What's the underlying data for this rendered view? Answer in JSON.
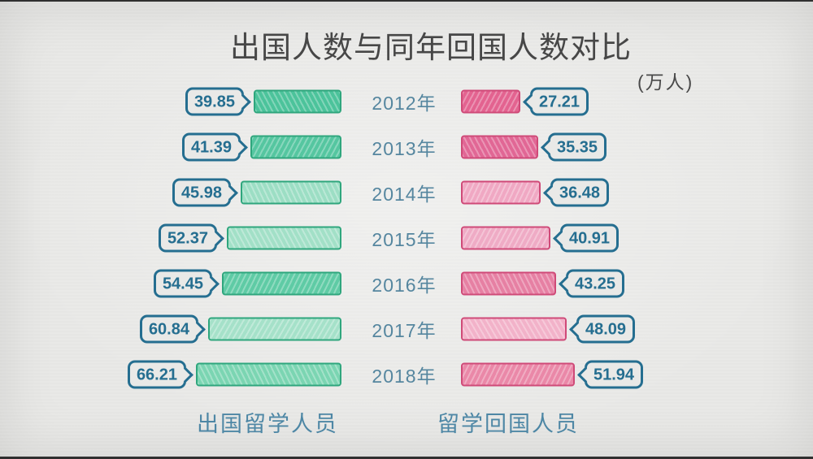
{
  "title": {
    "text": "出国人数与同年回国人数对比"
  },
  "unit_label": "(万人)",
  "legend": {
    "outbound": "出国留学人员",
    "returnee": "留学回国人员"
  },
  "chart_data": {
    "type": "bar",
    "orientation": "horizontal",
    "layout": "mirrored-tornado",
    "title": "出国人数与同年回国人数对比",
    "unit": "万人",
    "grid": false,
    "value_labels_shown": true,
    "categories": [
      "2012年",
      "2013年",
      "2014年",
      "2015年",
      "2016年",
      "2017年",
      "2018年"
    ],
    "series": [
      {
        "name": "出国留学人员",
        "side": "left",
        "values": [
          39.85,
          41.39,
          45.98,
          52.37,
          54.45,
          60.84,
          66.21
        ],
        "bar_fills": [
          "#4cc39b",
          "#55c6a0",
          "#9cdec4",
          "#a2e0c7",
          "#5fcba5",
          "#a5e1c9",
          "#7bd5b2"
        ],
        "bar_border_color": "#2fa67d"
      },
      {
        "name": "留学回国人员",
        "side": "right",
        "values": [
          27.21,
          35.35,
          36.48,
          40.91,
          43.25,
          48.09,
          51.94
        ],
        "bar_fills": [
          "#e36390",
          "#e16795",
          "#f0a8c3",
          "#efabc5",
          "#e680a3",
          "#f2b2c9",
          "#ea88a8"
        ],
        "bar_border_color": "#cf4a78"
      }
    ],
    "value_bubble_style": {
      "border_color": "#256e90",
      "text_color": "#256e90"
    },
    "category_label_color": "#55869f",
    "background_color": "#e9e9e7"
  }
}
